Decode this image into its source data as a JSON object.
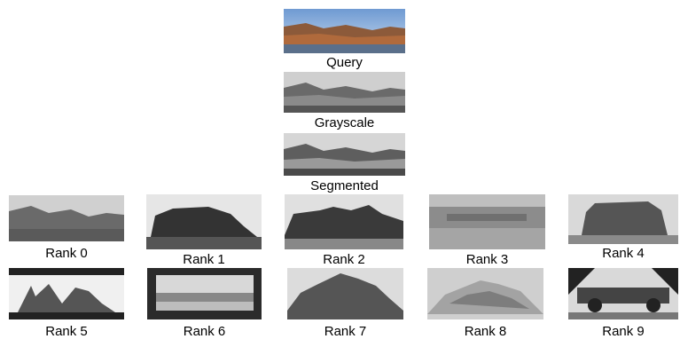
{
  "top": {
    "query_label": "Query",
    "grayscale_label": "Grayscale",
    "segmented_label": "Segmented"
  },
  "results": [
    {
      "label": "Rank 0"
    },
    {
      "label": "Rank 1"
    },
    {
      "label": "Rank 2"
    },
    {
      "label": "Rank 3"
    },
    {
      "label": "Rank 4"
    },
    {
      "label": "Rank 5"
    },
    {
      "label": "Rank 6"
    },
    {
      "label": "Rank 7"
    },
    {
      "label": "Rank 8"
    },
    {
      "label": "Rank 9"
    }
  ]
}
